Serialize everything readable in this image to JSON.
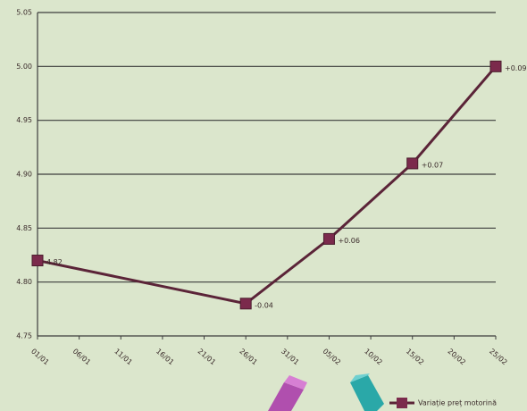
{
  "chart_data": {
    "type": "line",
    "categories": [
      "01/01",
      "06/01",
      "11/01",
      "16/01",
      "21/01",
      "26/01",
      "31/01",
      "05/02",
      "10/02",
      "15/02",
      "20/02",
      "25/02"
    ],
    "series": [
      {
        "name": "Variație preț motorină",
        "color": "#5b2438",
        "marker_color": "#7b2a4c",
        "x": [
          "01/01",
          "26/01",
          "05/02",
          "15/02",
          "25/02"
        ],
        "values": [
          4.82,
          4.78,
          4.84,
          4.91,
          5.0
        ],
        "point_labels": [
          "4.82",
          "-0.04",
          "+0.06",
          "+0.07",
          "+0.09"
        ]
      }
    ],
    "ylim": [
      4.75,
      5.05
    ],
    "yticks": [
      4.75,
      {
        "value": 4.8,
        "label": "4.80"
      },
      4.85,
      {
        "value": 4.9,
        "label": "4.90"
      },
      4.95,
      {
        "value": 5.0,
        "label": "5.00"
      },
      5.05
    ],
    "grid": true,
    "legend": "bottom-right"
  }
}
